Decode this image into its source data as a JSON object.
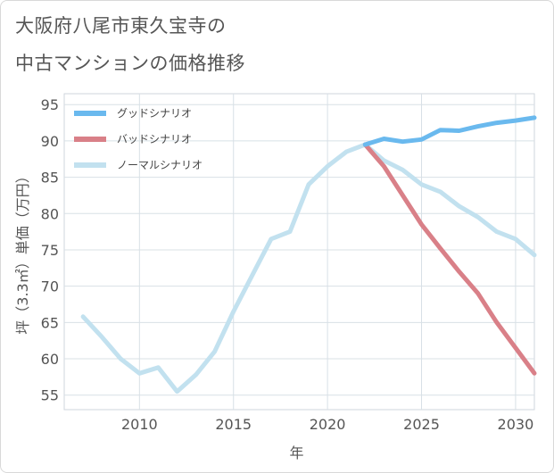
{
  "title": [
    "大阪府八尾市東久宝寺の",
    "中古マンションの価格推移"
  ],
  "chart_data": {
    "type": "line",
    "xlabel": "年",
    "ylabel": "坪（3.3㎡）単価（万円）",
    "xlim": [
      2006,
      2031
    ],
    "ylim": [
      53,
      96.5
    ],
    "x_ticks": [
      2010,
      2015,
      2020,
      2025,
      2030
    ],
    "y_ticks": [
      55,
      60,
      65,
      70,
      75,
      80,
      85,
      90,
      95
    ],
    "grid": true,
    "legend_position": "top-left",
    "series": [
      {
        "name": "グッドシナリオ",
        "color": "#6ab9ee",
        "x": [
          2022,
          2023,
          2024,
          2025,
          2026,
          2027,
          2028,
          2029,
          2030,
          2031
        ],
        "values": [
          89.5,
          90.3,
          89.9,
          90.2,
          91.5,
          91.4,
          92.0,
          92.5,
          92.8,
          93.2
        ]
      },
      {
        "name": "バッドシナリオ",
        "color": "#d98088",
        "x": [
          2022,
          2023,
          2024,
          2025,
          2026,
          2027,
          2028,
          2029,
          2030,
          2031
        ],
        "values": [
          89.5,
          86.5,
          82.5,
          78.5,
          75.2,
          72.0,
          69.0,
          65.0,
          61.5,
          58.0
        ]
      },
      {
        "name": "ノーマルシナリオ",
        "color": "#c2e1ef",
        "x": [
          2007,
          2008,
          2009,
          2010,
          2011,
          2012,
          2013,
          2014,
          2015,
          2016,
          2017,
          2018,
          2019,
          2020,
          2021,
          2022,
          2023,
          2024,
          2025,
          2026,
          2027,
          2028,
          2029,
          2030,
          2031
        ],
        "values": [
          65.8,
          63.0,
          60.0,
          58.0,
          58.8,
          55.5,
          57.8,
          61.0,
          66.5,
          71.5,
          76.5,
          77.5,
          84.0,
          86.5,
          88.5,
          89.5,
          87.3,
          86.0,
          84.0,
          83.0,
          81.0,
          79.5,
          77.5,
          76.5,
          74.3
        ]
      }
    ]
  }
}
